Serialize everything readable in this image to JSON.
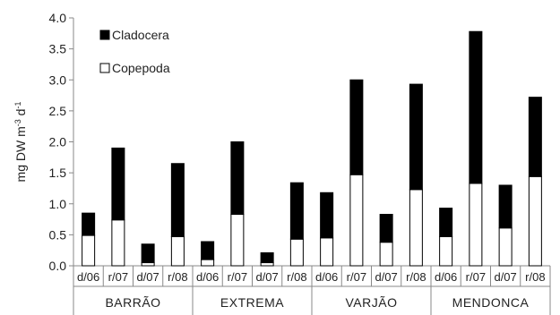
{
  "chart_data": {
    "type": "bar",
    "stacked": true,
    "ylabel": "mg DW m-3 d-1",
    "ylim": [
      0,
      4.0
    ],
    "yticks": [
      "0.0",
      "0.5",
      "1.0",
      "1.5",
      "2.0",
      "2.5",
      "3.0",
      "3.5",
      "4.0"
    ],
    "categories": [
      "d/06",
      "r/07",
      "d/07",
      "r/08",
      "d/06",
      "r/07",
      "d/07",
      "r/08",
      "d/06",
      "r/07",
      "d/07",
      "r/08",
      "d/06",
      "r/07",
      "d/07",
      "r/08"
    ],
    "groups": [
      {
        "label": "BARRÃO",
        "count": 4
      },
      {
        "label": "EXTREMA",
        "count": 4
      },
      {
        "label": "VARJÃO",
        "count": 4
      },
      {
        "label": "MENDONCA",
        "count": 4
      }
    ],
    "series": [
      {
        "name": "Copepoda",
        "color": "#ffffff",
        "values": [
          0.49,
          0.74,
          0.05,
          0.47,
          0.1,
          0.83,
          0.05,
          0.43,
          0.45,
          1.47,
          0.38,
          1.23,
          0.47,
          1.33,
          0.61,
          1.44
        ]
      },
      {
        "name": "Cladocera",
        "color": "#000000",
        "values": [
          0.36,
          1.16,
          0.3,
          1.18,
          0.29,
          1.17,
          0.16,
          0.91,
          0.73,
          1.53,
          0.45,
          1.7,
          0.46,
          2.45,
          0.69,
          1.28
        ]
      }
    ],
    "legend_position": "top-left",
    "grid": false
  }
}
